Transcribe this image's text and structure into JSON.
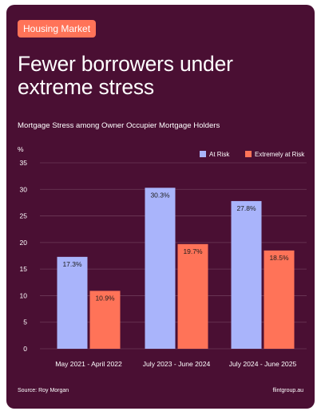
{
  "tag": "Housing Market",
  "title": "Fewer borrowers under extreme stress",
  "chart_data": {
    "type": "bar",
    "title": "Mortgage Stress among Owner Occupier Mortgage Holders",
    "ylabel": "%",
    "xlabel": "",
    "ylim": [
      0,
      35
    ],
    "yticks": [
      "0",
      "5",
      "10",
      "15",
      "20",
      "25",
      "30",
      "35"
    ],
    "grid": true,
    "legend_position": "top-right",
    "categories": [
      "May 2021 - April 2022",
      "July 2023 - June 2024",
      "July 2024 - June 2025"
    ],
    "series": [
      {
        "name": "At Risk",
        "color": "#a9b4fb",
        "values": [
          17.3,
          30.3,
          27.8
        ],
        "labels": [
          "17.3%",
          "30.3%",
          "27.8%"
        ]
      },
      {
        "name": "Extremely at Risk",
        "color": "#ff7358",
        "values": [
          10.9,
          19.7,
          18.5
        ],
        "labels": [
          "10.9%",
          "19.7%",
          "18.5%"
        ]
      }
    ]
  },
  "footer": {
    "source": "Source: Roy Morgan",
    "brand": "flintgroup.au"
  },
  "colors": {
    "background": "#4a0f33",
    "accent": "#ff7358",
    "at_risk": "#a9b4fb",
    "extremely_at_risk": "#ff7358"
  }
}
